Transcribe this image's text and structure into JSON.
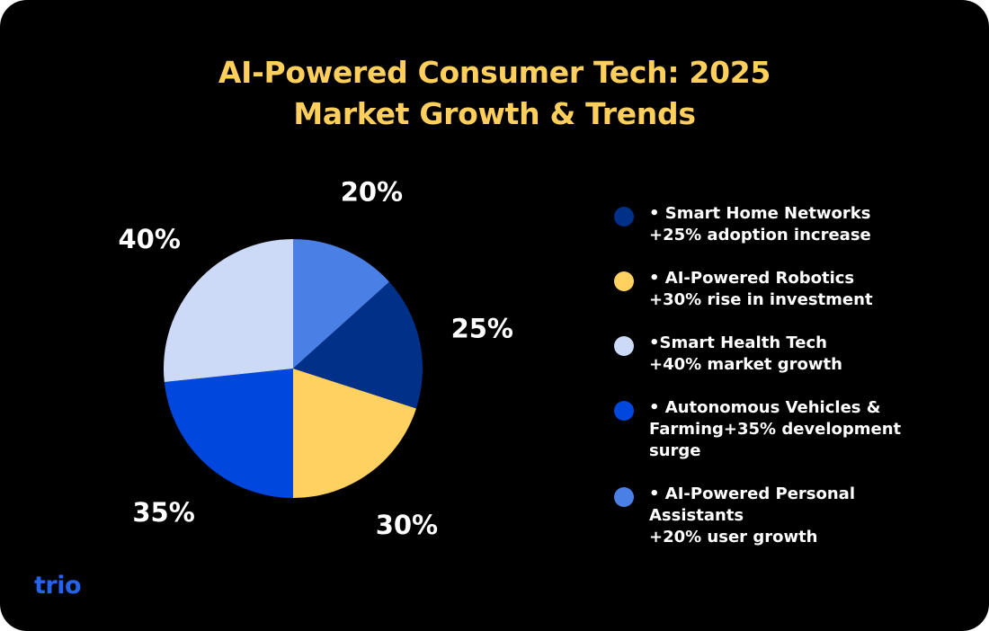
{
  "title": {
    "line1": "AI-Powered Consumer Tech: 2025",
    "line2": "Market Growth & Trends"
  },
  "chart_data": {
    "type": "pie",
    "title": "AI-Powered Consumer Tech: 2025 Market Growth & Trends",
    "slices": [
      {
        "label": "20%",
        "value": 20,
        "color": "#4A7FE5"
      },
      {
        "label": "25%",
        "value": 25,
        "color": "#003087"
      },
      {
        "label": "30%",
        "value": 30,
        "color": "#FFD161"
      },
      {
        "label": "35%",
        "value": 35,
        "color": "#0047DE"
      },
      {
        "label": "40%",
        "value": 40,
        "color": "#CCDAF7"
      }
    ],
    "legend_position": "right"
  },
  "legend": [
    {
      "color": "#003087",
      "lines": [
        "• Smart Home Networks",
        "+25% adoption increase"
      ]
    },
    {
      "color": "#FFD161",
      "lines": [
        "• AI-Powered Robotics",
        "+30% rise in investment"
      ]
    },
    {
      "color": "#CCDAF7",
      "lines": [
        "•Smart Health Tech",
        "+40% market growth"
      ]
    },
    {
      "color": "#0047DE",
      "lines": [
        "• Autonomous Vehicles &",
        "Farming+35% development",
        "surge"
      ]
    },
    {
      "color": "#4A7FE5",
      "lines": [
        "• AI-Powered Personal",
        "Assistants",
        "+20% user growth"
      ]
    }
  ],
  "logo": {
    "text": "trio"
  }
}
